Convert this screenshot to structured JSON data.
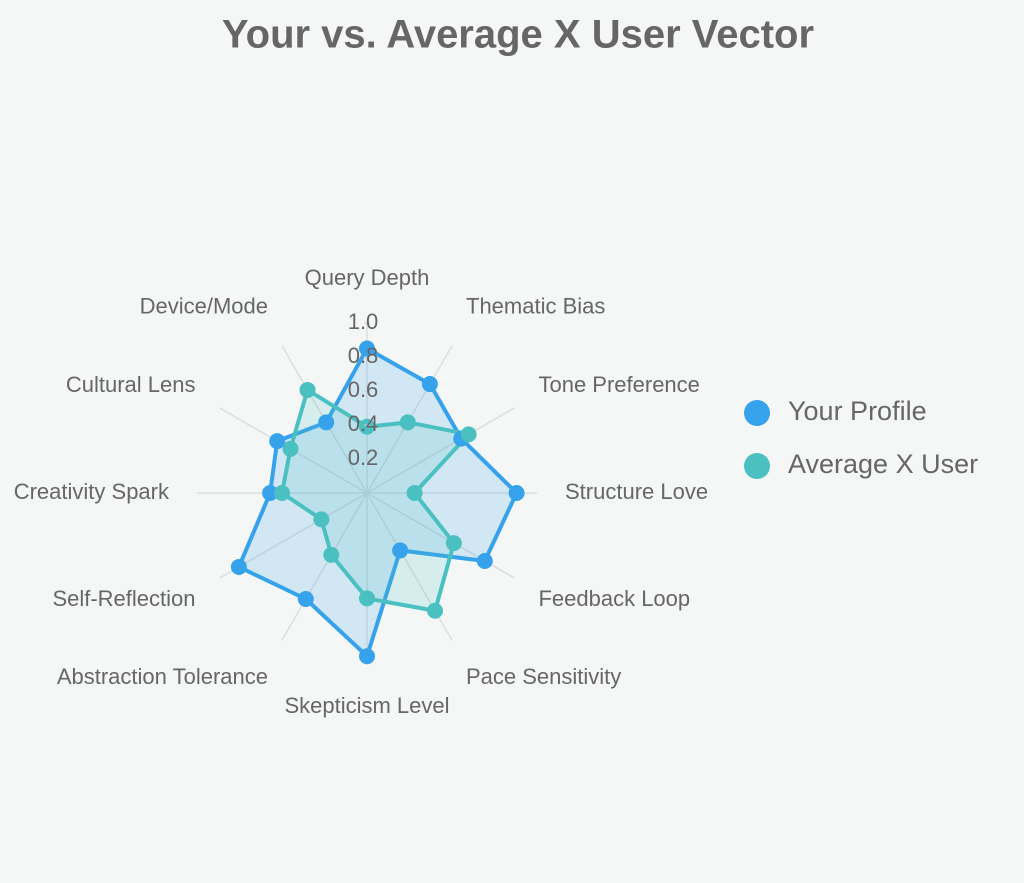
{
  "chart_data": {
    "type": "radar",
    "title": "Your vs. Average X User Vector",
    "categories": [
      "Query Depth",
      "Thematic Bias",
      "Tone Preference",
      "Structure Love",
      "Feedback Loop",
      "Pace Sensitivity",
      "Skepticism Level",
      "Abstraction Tolerance",
      "Self-Reflection",
      "Creativity Spark",
      "Cultural Lens",
      "Device/Mode"
    ],
    "series": [
      {
        "name": "Your Profile",
        "color": "#36a2eb",
        "values": [
          0.85,
          0.74,
          0.64,
          0.88,
          0.8,
          0.39,
          0.96,
          0.72,
          0.87,
          0.57,
          0.61,
          0.48
        ]
      },
      {
        "name": "Average X User",
        "color": "#4bc0c0",
        "values": [
          0.39,
          0.48,
          0.69,
          0.28,
          0.59,
          0.8,
          0.62,
          0.42,
          0.31,
          0.5,
          0.52,
          0.7
        ]
      }
    ],
    "rlim": [
      0,
      1
    ],
    "rticks": [
      0.2,
      0.4,
      0.6,
      0.8,
      {
        "value": 1,
        "label": "1.0"
      }
    ],
    "legend": "right"
  }
}
